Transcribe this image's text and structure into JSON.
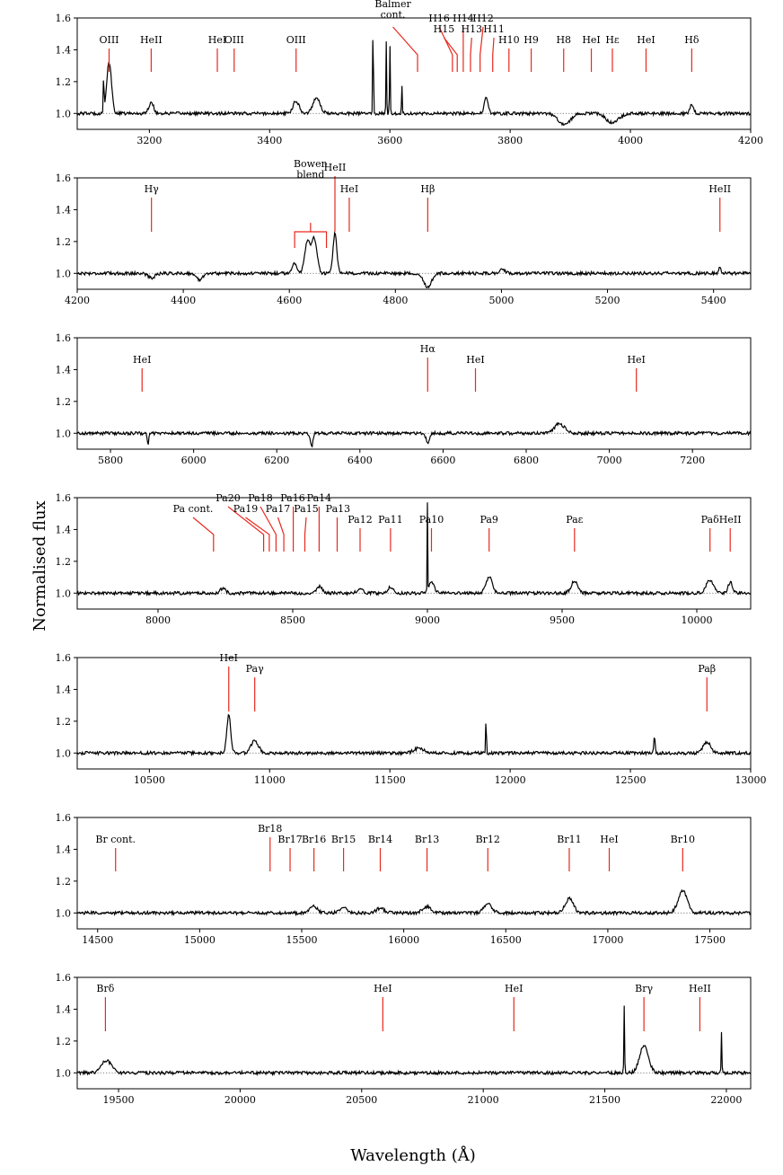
{
  "figure": {
    "ylabel": "Normalised flux",
    "xlabel": "Wavelength (Å)"
  },
  "chart_data": [
    {
      "type": "line",
      "xlim": [
        3080,
        4200
      ],
      "ylim": [
        0.9,
        1.6
      ],
      "xticks": [
        3200,
        3400,
        3600,
        3800,
        4000,
        4200
      ],
      "yticks": [
        1.0,
        1.2,
        1.4,
        1.6
      ],
      "continuum_level": 1.0,
      "features": [
        {
          "x": 3133,
          "w": 4,
          "a": 0.32
        },
        {
          "x": 3203,
          "w": 4,
          "a": 0.07
        },
        {
          "x": 3444,
          "w": 5,
          "a": 0.08
        },
        {
          "x": 3478,
          "w": 6,
          "a": 0.1
        },
        {
          "x": 3760,
          "w": 3,
          "a": 0.1
        },
        {
          "x": 3890,
          "w": 10,
          "a": -0.07
        },
        {
          "x": 3970,
          "w": 10,
          "a": -0.06
        },
        {
          "x": 4102,
          "w": 3,
          "a": 0.06
        },
        {
          "x": 3572,
          "w": 0.6,
          "a": 0.6
        },
        {
          "x": 3594,
          "w": 0.6,
          "a": 0.45
        },
        {
          "x": 3600,
          "w": 0.6,
          "a": 0.45
        },
        {
          "x": 3620,
          "w": 0.6,
          "a": 0.18
        },
        {
          "x": 3124,
          "w": 0.6,
          "a": 0.25
        }
      ],
      "lines": [
        {
          "label": "OIII",
          "x": 3133,
          "tier": 0
        },
        {
          "label": "HeII",
          "x": 3203,
          "tier": 0
        },
        {
          "label": "HeI",
          "x": 3313,
          "tier": 0
        },
        {
          "label": "OIII",
          "x": 3341,
          "tier": 0
        },
        {
          "label": "OIII",
          "x": 3444,
          "tier": 0
        },
        {
          "label": "Balmer",
          "label2": "cont.",
          "x": 3646,
          "tx": 3605,
          "tier": 2
        },
        {
          "label": "H16",
          "x": 3704,
          "tx": 3682,
          "tier": 2
        },
        {
          "label": "H15",
          "x": 3712,
          "tx": 3690,
          "tier": 1
        },
        {
          "label": "H14",
          "x": 3722,
          "tx": 3722,
          "tier": 2
        },
        {
          "label": "H13",
          "x": 3734,
          "tx": 3736,
          "tier": 1
        },
        {
          "label": "H12",
          "x": 3750,
          "tx": 3755,
          "tier": 2
        },
        {
          "label": "H11",
          "x": 3771,
          "tx": 3773,
          "tier": 1
        },
        {
          "label": "H10",
          "x": 3798,
          "tier": 0
        },
        {
          "label": "H9",
          "x": 3835,
          "tier": 0
        },
        {
          "label": "H8",
          "x": 3889,
          "tier": 0
        },
        {
          "label": "HeI",
          "x": 3935,
          "tier": 0
        },
        {
          "label": "Hε",
          "x": 3970,
          "tier": 0
        },
        {
          "label": "HeI",
          "x": 4026,
          "tier": 0
        },
        {
          "label": "Hδ",
          "x": 4102,
          "tier": 0
        }
      ]
    },
    {
      "type": "line",
      "xlim": [
        4200,
        5470
      ],
      "ylim": [
        0.9,
        1.6
      ],
      "xticks": [
        4200,
        4400,
        4600,
        4800,
        5000,
        5200,
        5400
      ],
      "yticks": [
        1.0,
        1.2,
        1.4,
        1.6
      ],
      "continuum_level": 1.0,
      "features": [
        {
          "x": 4340,
          "w": 6,
          "a": -0.03
        },
        {
          "x": 4430,
          "w": 6,
          "a": -0.04
        },
        {
          "x": 4610,
          "w": 5,
          "a": 0.06
        },
        {
          "x": 4634,
          "w": 5,
          "a": 0.2
        },
        {
          "x": 4647,
          "w": 5,
          "a": 0.22
        },
        {
          "x": 4686,
          "w": 3.5,
          "a": 0.25
        },
        {
          "x": 4861,
          "w": 7,
          "a": -0.09
        },
        {
          "x": 5001,
          "w": 5,
          "a": 0.03
        },
        {
          "x": 5412,
          "w": 2,
          "a": 0.04
        }
      ],
      "lines": [
        {
          "label": "Hγ",
          "x": 4340,
          "tier": 1
        },
        {
          "label": "Bowen",
          "label2": "blend",
          "x": 4640,
          "bracket": [
            4610,
            4670
          ],
          "tier": 2
        },
        {
          "label": "HeII",
          "x": 4686,
          "tier": 3
        },
        {
          "label": "HeI",
          "x": 4713,
          "tier": 1
        },
        {
          "label": "Hβ",
          "x": 4861,
          "tier": 1
        },
        {
          "label": "HeII",
          "x": 5412,
          "tier": 1
        }
      ]
    },
    {
      "type": "line",
      "xlim": [
        5720,
        7340
      ],
      "ylim": [
        0.9,
        1.6
      ],
      "xticks": [
        5800,
        6000,
        6200,
        6400,
        6600,
        6800,
        7000,
        7200
      ],
      "yticks": [
        1.0,
        1.2,
        1.4,
        1.6
      ],
      "continuum_level": 1.0,
      "features": [
        {
          "x": 5890,
          "w": 2,
          "a": -0.07
        },
        {
          "x": 6284,
          "w": 3,
          "a": -0.08
        },
        {
          "x": 6563,
          "w": 4,
          "a": -0.06
        },
        {
          "x": 6880,
          "w": 12,
          "a": 0.06
        }
      ],
      "lines": [
        {
          "label": "HeI",
          "x": 5876,
          "tier": 0
        },
        {
          "label": "Hα",
          "x": 6563,
          "tier": 1
        },
        {
          "label": "HeI",
          "x": 6678,
          "tier": 0
        },
        {
          "label": "HeI",
          "x": 7065,
          "tier": 0
        }
      ]
    },
    {
      "type": "line",
      "xlim": [
        7700,
        10200
      ],
      "ylim": [
        0.9,
        1.6
      ],
      "xticks": [
        8000,
        8500,
        9000,
        9500,
        10000
      ],
      "yticks": [
        1.0,
        1.2,
        1.4,
        1.6
      ],
      "continuum_level": 1.0,
      "features": [
        {
          "x": 8240,
          "w": 10,
          "a": 0.03
        },
        {
          "x": 8600,
          "w": 10,
          "a": 0.04
        },
        {
          "x": 8750,
          "w": 10,
          "a": 0.03
        },
        {
          "x": 8863,
          "w": 10,
          "a": 0.04
        },
        {
          "x": 9015,
          "w": 10,
          "a": 0.07
        },
        {
          "x": 9229,
          "w": 12,
          "a": 0.1
        },
        {
          "x": 9546,
          "w": 12,
          "a": 0.08
        },
        {
          "x": 10049,
          "w": 14,
          "a": 0.08
        },
        {
          "x": 10124,
          "w": 8,
          "a": 0.07
        },
        {
          "x": 9000,
          "w": 1,
          "a": 0.55
        }
      ],
      "lines": [
        {
          "label": "Pa cont.",
          "x": 8206,
          "tx": 8130,
          "tier": 1
        },
        {
          "label": "Pa20",
          "x": 8392,
          "tx": 8260,
          "tier": 2
        },
        {
          "label": "Pa19",
          "x": 8413,
          "tx": 8325,
          "tier": 1
        },
        {
          "label": "Pa18",
          "x": 8438,
          "tx": 8380,
          "tier": 2
        },
        {
          "label": "Pa17",
          "x": 8467,
          "tx": 8445,
          "tier": 1
        },
        {
          "label": "Pa16",
          "x": 8502,
          "tx": 8500,
          "tier": 2
        },
        {
          "label": "Pa15",
          "x": 8545,
          "tx": 8550,
          "tier": 1
        },
        {
          "label": "Pa14",
          "x": 8598,
          "tx": 8598,
          "tier": 2
        },
        {
          "label": "Pa13",
          "x": 8665,
          "tx": 8668,
          "tier": 1
        },
        {
          "label": "Pa12",
          "x": 8750,
          "tier": 0
        },
        {
          "label": "Pa11",
          "x": 8863,
          "tier": 0
        },
        {
          "label": "Pa10",
          "x": 9015,
          "tier": 0
        },
        {
          "label": "Pa9",
          "x": 9229,
          "tier": 0
        },
        {
          "label": "Paε",
          "x": 9546,
          "tier": 0
        },
        {
          "label": "Paδ",
          "x": 10049,
          "tier": 0
        },
        {
          "label": "HeII",
          "x": 10124,
          "tier": 0
        }
      ]
    },
    {
      "type": "line",
      "xlim": [
        10200,
        13000
      ],
      "ylim": [
        0.9,
        1.6
      ],
      "xticks": [
        10500,
        11000,
        11500,
        12000,
        12500,
        13000
      ],
      "yticks": [
        1.0,
        1.2,
        1.4,
        1.6
      ],
      "continuum_level": 1.0,
      "features": [
        {
          "x": 10830,
          "w": 8,
          "a": 0.24
        },
        {
          "x": 10938,
          "w": 15,
          "a": 0.08
        },
        {
          "x": 11620,
          "w": 20,
          "a": 0.03
        },
        {
          "x": 12818,
          "w": 15,
          "a": 0.07
        },
        {
          "x": 11900,
          "w": 1.2,
          "a": 0.33
        },
        {
          "x": 12600,
          "w": 3,
          "a": 0.1
        }
      ],
      "lines": [
        {
          "label": "HeI",
          "x": 10830,
          "tier": 2
        },
        {
          "label": "Paγ",
          "x": 10938,
          "tier": 1
        },
        {
          "label": "Paβ",
          "x": 12818,
          "tier": 1
        }
      ]
    },
    {
      "type": "line",
      "xlim": [
        14400,
        17700
      ],
      "ylim": [
        0.9,
        1.6
      ],
      "xticks": [
        14500,
        15000,
        15500,
        16000,
        16500,
        17000,
        17500
      ],
      "yticks": [
        1.0,
        1.2,
        1.4,
        1.6
      ],
      "continuum_level": 1.0,
      "features": [
        {
          "x": 15556,
          "w": 20,
          "a": 0.04
        },
        {
          "x": 15705,
          "w": 20,
          "a": 0.03
        },
        {
          "x": 15885,
          "w": 20,
          "a": 0.03
        },
        {
          "x": 16114,
          "w": 20,
          "a": 0.04
        },
        {
          "x": 16412,
          "w": 20,
          "a": 0.06
        },
        {
          "x": 16811,
          "w": 20,
          "a": 0.09
        },
        {
          "x": 17367,
          "w": 22,
          "a": 0.14
        }
      ],
      "lines": [
        {
          "label": "Br cont.",
          "x": 14588,
          "tier": 0
        },
        {
          "label": "Br18",
          "x": 15345,
          "tier": 1
        },
        {
          "label": "Br17",
          "x": 15443,
          "tier": 0
        },
        {
          "label": "Br16",
          "x": 15560,
          "tier": 0
        },
        {
          "label": "Br15",
          "x": 15705,
          "tier": 0
        },
        {
          "label": "Br14",
          "x": 15885,
          "tier": 0
        },
        {
          "label": "Br13",
          "x": 16114,
          "tier": 0
        },
        {
          "label": "Br12",
          "x": 16412,
          "tier": 0
        },
        {
          "label": "Br11",
          "x": 16811,
          "tier": 0
        },
        {
          "label": "HeI",
          "x": 17007,
          "tier": 0
        },
        {
          "label": "Br10",
          "x": 17367,
          "tier": 0
        }
      ]
    },
    {
      "type": "line",
      "xlim": [
        19330,
        22100
      ],
      "ylim": [
        0.9,
        1.6
      ],
      "xticks": [
        19500,
        20000,
        20500,
        21000,
        21500,
        22000
      ],
      "yticks": [
        1.0,
        1.2,
        1.4,
        1.6
      ],
      "continuum_level": 1.0,
      "features": [
        {
          "x": 19450,
          "w": 20,
          "a": 0.08
        },
        {
          "x": 21661,
          "w": 18,
          "a": 0.17
        },
        {
          "x": 21580,
          "w": 1.5,
          "a": 0.42
        },
        {
          "x": 21980,
          "w": 1.5,
          "a": 0.25
        }
      ],
      "lines": [
        {
          "label": "Brδ",
          "x": 19446,
          "tier": 1
        },
        {
          "label": "HeI",
          "x": 20587,
          "tier": 1
        },
        {
          "label": "HeI",
          "x": 21126,
          "tier": 1
        },
        {
          "label": "Brγ",
          "x": 21661,
          "tier": 1
        },
        {
          "label": "HeII",
          "x": 21891,
          "tier": 1
        }
      ]
    }
  ],
  "colors": {
    "spectrum": "#000000",
    "marker": "#e8281e",
    "continuum": "#555555"
  }
}
